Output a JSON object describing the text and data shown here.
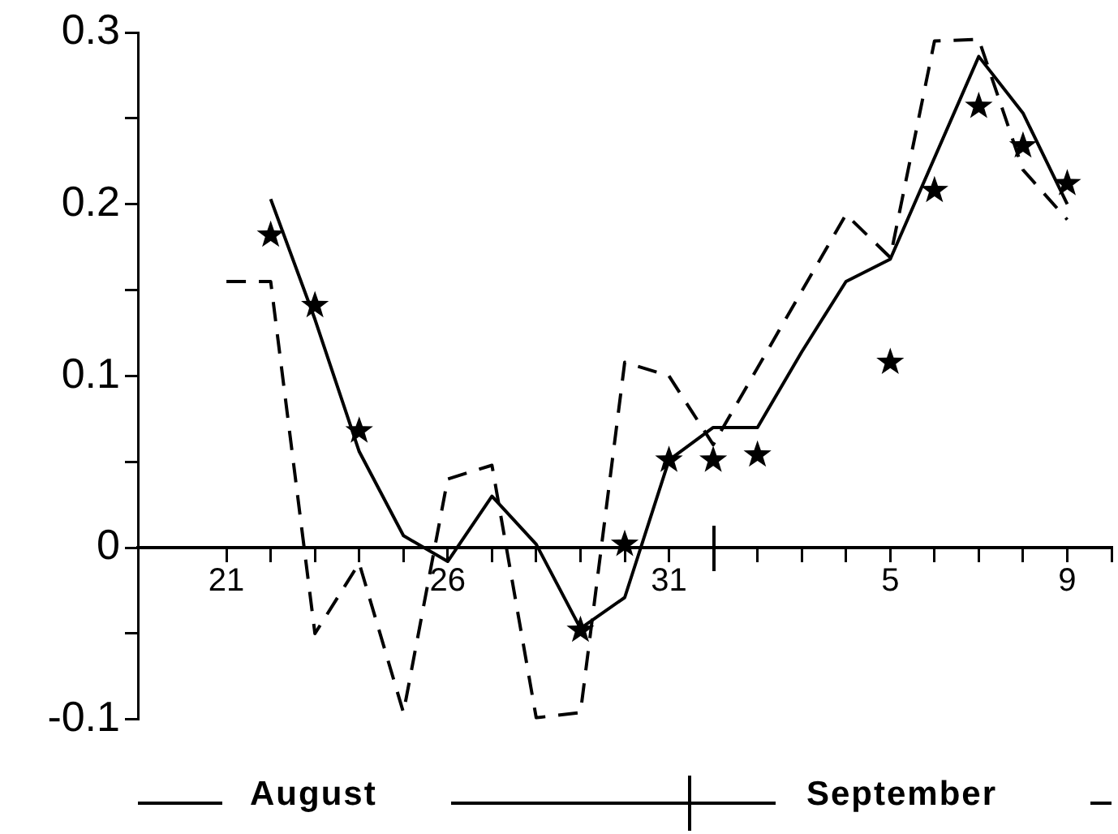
{
  "chart_data": {
    "type": "line",
    "xlim": [
      "--08-19",
      "--09-10"
    ],
    "ylim": [
      -0.1,
      0.3
    ],
    "xticks": [
      {
        "value": "--08-21",
        "label": "21"
      },
      {
        "value": "--08-22",
        "label": null
      },
      {
        "value": "--08-23",
        "label": null
      },
      {
        "value": "--08-24",
        "label": null
      },
      {
        "value": "--08-25",
        "label": null
      },
      {
        "value": "--08-26",
        "label": "26"
      },
      {
        "value": "--08-27",
        "label": null
      },
      {
        "value": "--08-28",
        "label": null
      },
      {
        "value": "--08-29",
        "label": null
      },
      {
        "value": "--08-30",
        "label": null
      },
      {
        "value": "--08-31",
        "label": "31"
      },
      {
        "value": "--09-01",
        "label": null
      },
      {
        "value": "--09-02",
        "label": null
      },
      {
        "value": "--09-03",
        "label": null
      },
      {
        "value": "--09-04",
        "label": null
      },
      {
        "value": "--09-05",
        "label": "5"
      },
      {
        "value": "--09-06",
        "label": null
      },
      {
        "value": "--09-07",
        "label": null
      },
      {
        "value": "--09-08",
        "label": null
      },
      {
        "value": "--09-09",
        "label": "9"
      },
      {
        "value": "--09-10",
        "label": null
      }
    ],
    "yticks": [
      -0.1,
      {
        "value": -0.05,
        "label": null
      },
      0,
      {
        "value": 0.05,
        "label": null
      },
      0.1,
      {
        "value": 0.15,
        "label": null
      },
      0.2,
      {
        "value": 0.25,
        "label": null
      },
      0.3
    ],
    "annotations": [
      "August",
      "September"
    ],
    "grid": false,
    "legend": false,
    "series": [
      {
        "color": "#000000",
        "line_style": "solid",
        "marker": "none",
        "x": [
          "--08-22",
          "--08-23",
          "--08-24",
          "--08-25",
          "--08-26",
          "--08-27",
          "--08-28",
          "--08-29",
          "--08-30",
          "--08-31",
          "--09-01",
          "--09-02",
          "--09-03",
          "--09-04",
          "--09-05",
          "--09-07",
          "--09-08",
          "--09-09"
        ],
        "values": [
          0.203,
          0.133,
          0.056,
          0.007,
          -0.008,
          0.03,
          0.002,
          -0.047,
          -0.029,
          0.051,
          0.07,
          0.07,
          0.114,
          0.155,
          0.168,
          0.286,
          0.253,
          0.2
        ]
      },
      {
        "color": "#000000",
        "line_style": "dashed",
        "marker": "none",
        "x": [
          "--08-21",
          "--08-22",
          "--08-23",
          "--08-24",
          "--08-25",
          "--08-26",
          "--08-27",
          "--08-28",
          "--08-29",
          "--08-30",
          "--08-31",
          "--09-01",
          "--09-04",
          "--09-05",
          "--09-06",
          "--09-07",
          "--09-08",
          "--09-09"
        ],
        "values": [
          0.155,
          0.155,
          -0.05,
          -0.009,
          -0.096,
          0.04,
          0.048,
          -0.099,
          -0.096,
          0.108,
          0.1,
          0.06,
          0.194,
          0.169,
          0.295,
          0.296,
          0.22,
          0.191
        ]
      },
      {
        "type": "scatter",
        "color": "#000000",
        "marker": "star",
        "x": [
          "--08-22",
          "--08-23",
          "--08-24",
          "--08-29",
          "--08-30",
          "--08-31",
          "--09-01",
          "--09-02",
          "--09-05",
          "--09-06",
          "--09-07",
          "--09-08",
          "--09-09"
        ],
        "values": [
          0.182,
          0.141,
          0.068,
          -0.048,
          0.002,
          0.051,
          0.051,
          0.054,
          0.108,
          0.208,
          0.257,
          0.234,
          0.212
        ]
      }
    ]
  }
}
